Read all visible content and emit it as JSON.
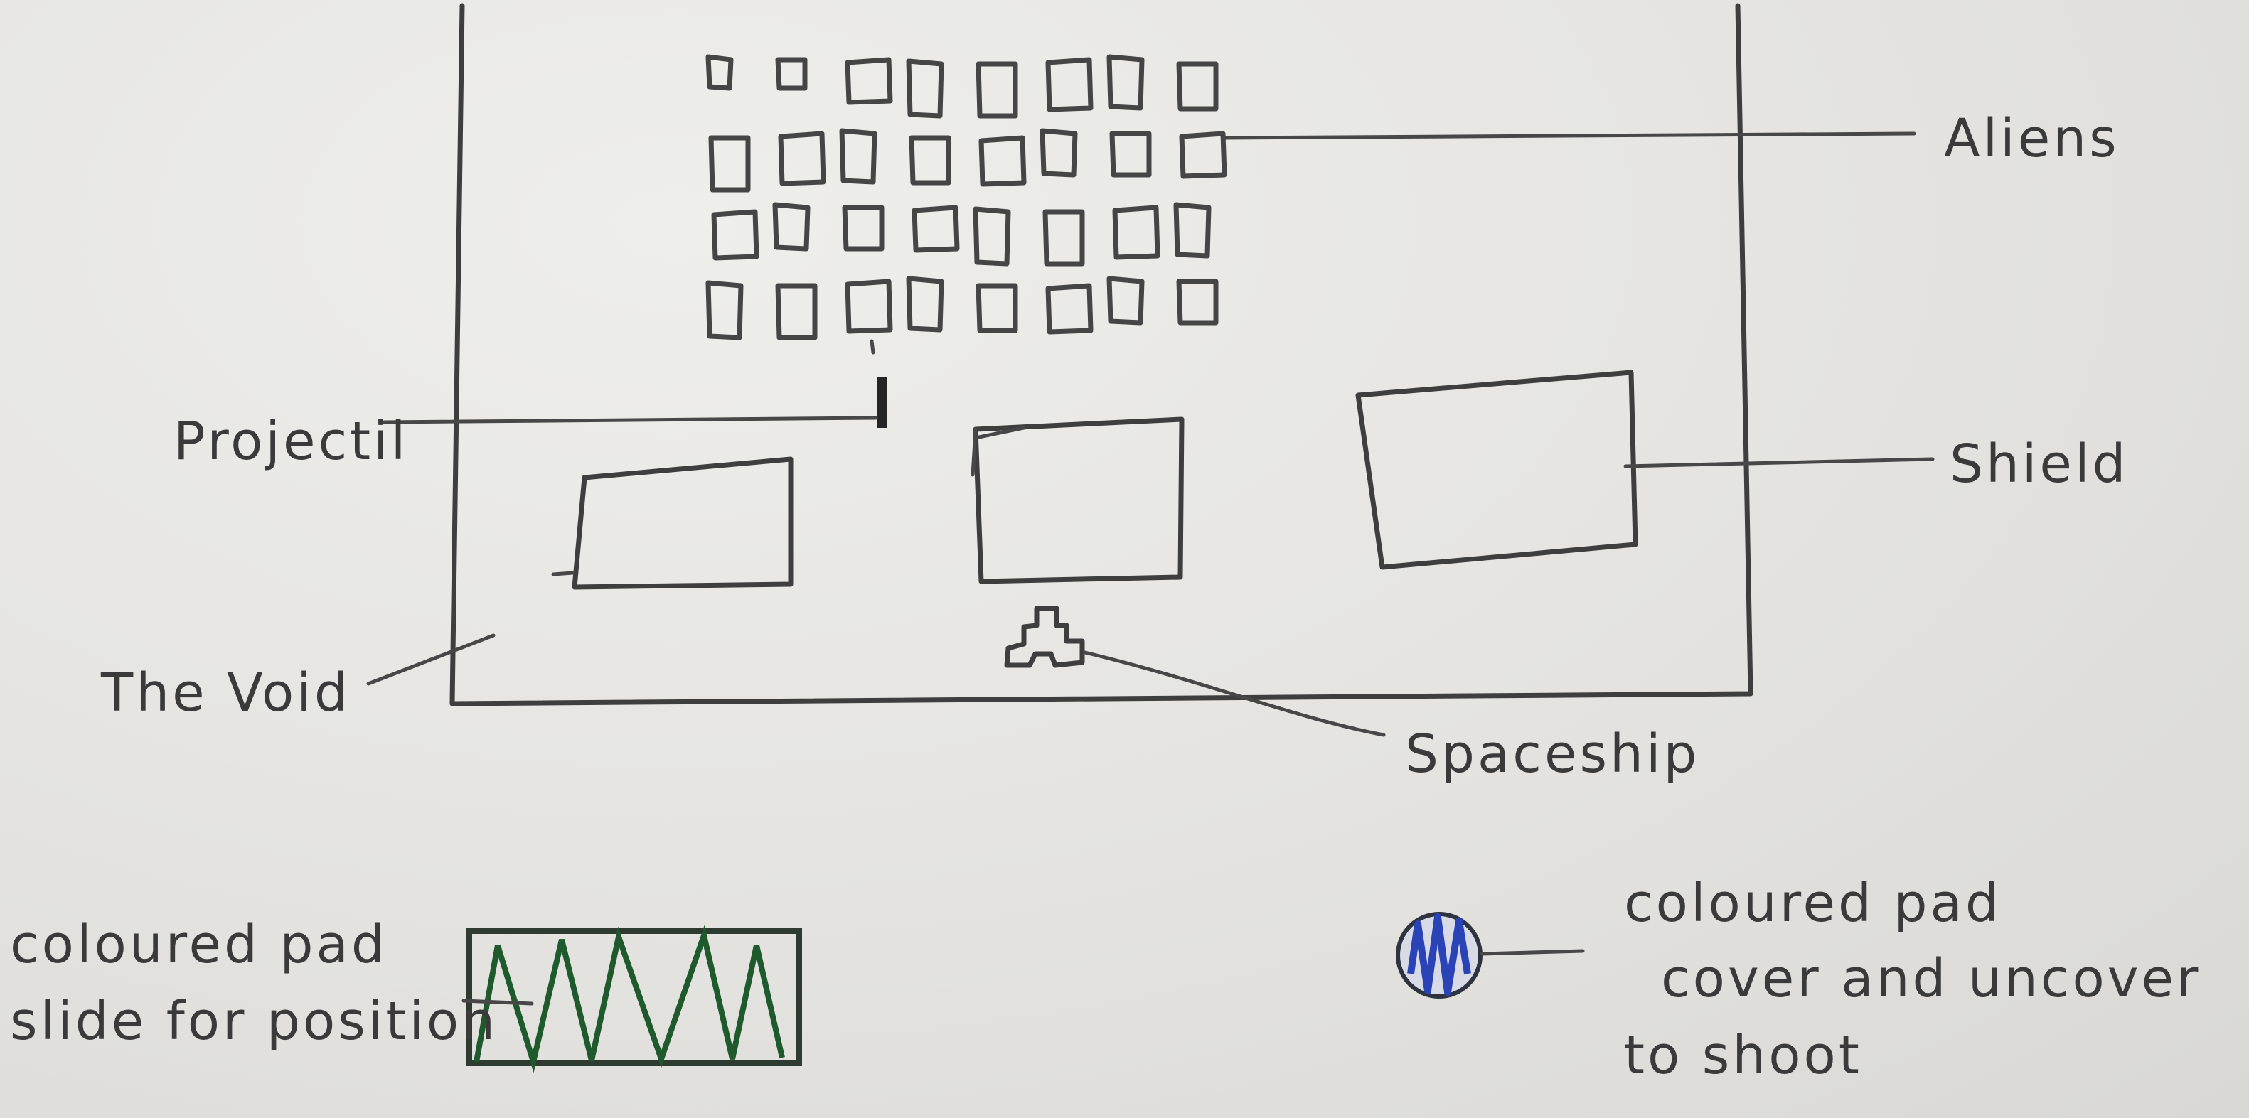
{
  "labels": {
    "aliens": "Aliens",
    "projectile": "Projectil",
    "shield": "Shield",
    "the_void": "The Void",
    "spaceship": "Spaceship",
    "slider_pad": [
      "coloured pad",
      "slide for position"
    ],
    "shoot_pad": [
      "coloured pad",
      "cover and uncover",
      "to shoot"
    ]
  },
  "aliens": {
    "rows": 4,
    "columns": 8
  },
  "shields": {
    "count": 3
  },
  "colors": {
    "pencil": "#3e3e3e",
    "slider_pad": "#1e5a2c",
    "shoot_pad": "#2a44b8",
    "paper": "#e7e6e2"
  }
}
